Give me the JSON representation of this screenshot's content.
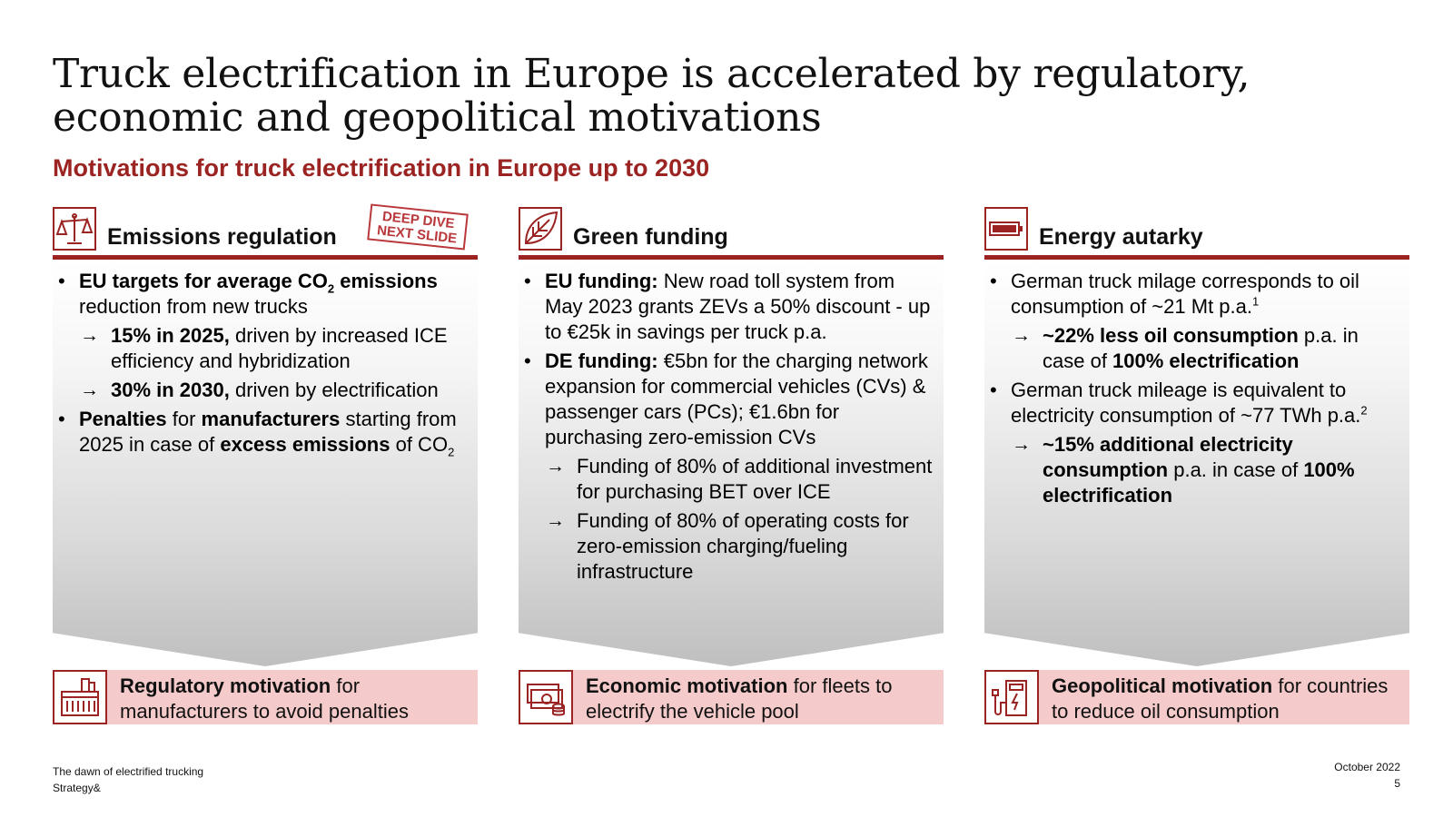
{
  "title": "Truck electrification in Europe is accelerated by regulatory, economic and geopolitical motivations",
  "subtitle": "Motivations for truck electrification in Europe up to 2030",
  "columns": [
    {
      "title": "Emissions regulation",
      "icon": "scales-icon",
      "stamp": {
        "line1": "DEEP DIVE",
        "line2": "NEXT SLIDE"
      },
      "bullets": {
        "b1_bold": "EU targets for average CO",
        "b1_sub": "2",
        "b1_bold2": " emissions",
        "b1_text": " reduction from new trucks",
        "s1_bold": "15% in 2025,",
        "s1_text": " driven by increased ICE efficiency and hybridization",
        "s2_bold": "30% in 2030,",
        "s2_text": " driven by electrification",
        "b2_bold1": "Penalties",
        "b2_t1": " for ",
        "b2_bold2": "manufacturers",
        "b2_t2": " starting from 2025 in case of ",
        "b2_bold3": "excess emissions",
        "b2_t3": " of CO",
        "b2_sub": "2"
      },
      "motivation": {
        "bold": "Regulatory motivation",
        "text": " for manufacturers to avoid penalties",
        "icon": "factory-icon"
      }
    },
    {
      "title": "Green funding",
      "icon": "leaf-icon",
      "bullets": {
        "b1_bold": "EU funding:",
        "b1_text": " New road toll system from May 2023 grants ZEVs a 50% discount - up to €25k in savings per truck p.a.",
        "b2_bold": "DE funding:",
        "b2_text": " €5bn for the charging network expansion for commercial vehicles (CVs) & passenger cars (PCs); €1.6bn for purchasing zero-emission CVs",
        "s1_text": "Funding of 80% of additional investment for purchasing BET over ICE",
        "s2_text": "Funding of 80% of operating costs for zero-emission charging/fueling infrastructure"
      },
      "motivation": {
        "bold": "Economic motivation",
        "text": " for fleets to electrify the vehicle pool",
        "icon": "money-icon"
      }
    },
    {
      "title": "Energy autarky",
      "icon": "battery-icon",
      "bullets": {
        "b1_text": "German truck milage corresponds to oil consumption of ~21 Mt p.a.",
        "b1_sup": "1",
        "s1_bold": "~22% less oil consumption",
        "s1_t1": " p.a. in case of ",
        "s1_bold2": "100% electrification",
        "b2_text": "German truck mileage is equivalent to electricity consumption of ~77 TWh p.a.",
        "b2_sup": "2",
        "s2_bold": "~15% additional electricity consumption",
        "s2_t1": " p.a. in case of ",
        "s2_bold2": "100% electrification"
      },
      "motivation": {
        "bold": "Geopolitical motivation",
        "text": " for countries to reduce oil consumption",
        "icon": "charging-station-icon"
      }
    }
  ],
  "footer": {
    "report": "The dawn of electrified trucking",
    "brand": "Strategy&",
    "date": "October 2022",
    "page": "5"
  }
}
